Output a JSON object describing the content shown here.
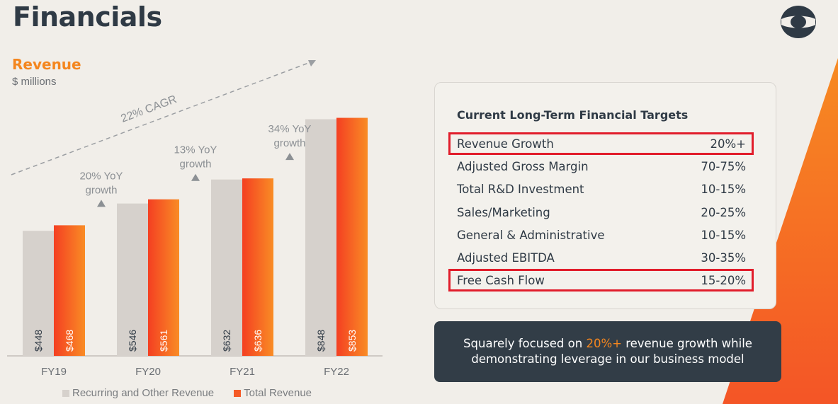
{
  "header": {
    "title": "Financials",
    "logo": "company-logo"
  },
  "revenue": {
    "title": "Revenue",
    "subtitle": "$ millions"
  },
  "chart_data": {
    "type": "bar",
    "categories": [
      "FY19",
      "FY20",
      "FY21",
      "FY22"
    ],
    "series": [
      {
        "name": "Recurring and Other Revenue",
        "values": [
          448,
          546,
          632,
          848
        ],
        "labels": [
          "$448",
          "$546",
          "$632",
          "$848"
        ],
        "color": "#d6d1cc"
      },
      {
        "name": "Total Revenue",
        "values": [
          468,
          561,
          636,
          853
        ],
        "labels": [
          "$468",
          "$561",
          "$636",
          "$853"
        ],
        "color": "#f55a26"
      }
    ],
    "ylim": [
      0,
      900
    ],
    "annotations": [
      {
        "category": "FY20",
        "line1": "20% YoY",
        "line2": "growth"
      },
      {
        "category": "FY21",
        "line1": "13% YoY",
        "line2": "growth"
      },
      {
        "category": "FY22",
        "line1": "34% YoY",
        "line2": "growth"
      }
    ],
    "cagr_label": "22% CAGR",
    "legend_position": "bottom"
  },
  "targets": {
    "title": "Current Long-Term Financial Targets",
    "rows": [
      {
        "label": "Revenue Growth",
        "value": "20%+",
        "highlight": true
      },
      {
        "label": "Adjusted Gross Margin",
        "value": "70-75%",
        "highlight": false
      },
      {
        "label": "Total R&D Investment",
        "value": "10-15%",
        "highlight": false
      },
      {
        "label": "Sales/Marketing",
        "value": "20-25%",
        "highlight": false
      },
      {
        "label": "General & Administrative",
        "value": "10-15%",
        "highlight": false
      },
      {
        "label": "Adjusted EBITDA",
        "value": "30-35%",
        "highlight": false
      },
      {
        "label": "Free Cash Flow",
        "value": "15-20%",
        "highlight": true
      }
    ]
  },
  "callout": {
    "prefix": "Squarely focused on ",
    "highlight": "20%+",
    "suffix_line1": " revenue growth while",
    "line2": "demonstrating leverage in our business model"
  },
  "colors": {
    "accent": "#f4861f",
    "total": "#f55a26",
    "recurring": "#d6d1cc",
    "dark": "#323d47",
    "highlight_border": "#e11d2b"
  }
}
